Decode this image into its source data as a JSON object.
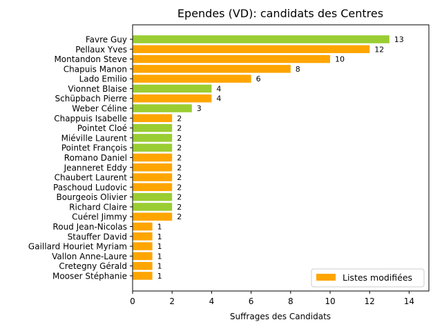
{
  "chart_data": {
    "type": "bar",
    "orientation": "horizontal",
    "title": "Ependes (VD): candidats des Centres",
    "xlabel": "Suffrages des Candidats",
    "ylabel": "",
    "xlim": [
      0,
      15
    ],
    "xticks": [
      "0",
      "2",
      "4",
      "6",
      "8",
      "10",
      "12",
      "14"
    ],
    "grid": false,
    "legend": {
      "position": "lower-right",
      "label": "Listes modifiées",
      "color": "#ffa500"
    },
    "colors": {
      "orange": "#ffa500",
      "green": "#9acd32"
    },
    "categories": [
      "Favre Guy",
      "Pellaux Yves",
      "Montandon Steve",
      "Chapuis Manon",
      "Lado Emilio",
      "Vionnet Blaise",
      "Schüpbach Pierre",
      "Weber Céline",
      "Chappuis Isabelle",
      "Pointet Cloé",
      "Miéville Laurent",
      "Pointet François",
      "Romano Daniel",
      "Jeanneret Eddy",
      "Chaubert Laurent",
      "Paschoud Ludovic",
      "Bourgeois Olivier",
      "Richard Claire",
      "Cuérel Jimmy",
      "Roud Jean-Nicolas",
      "Stauffer David",
      "Gaillard Houriet Myriam",
      "Vallon Anne-Laure",
      "Cretegny Gérald",
      "Mooser Stéphanie"
    ],
    "values": [
      13,
      12,
      10,
      8,
      6,
      4,
      4,
      3,
      2,
      2,
      2,
      2,
      2,
      2,
      2,
      2,
      2,
      2,
      2,
      1,
      1,
      1,
      1,
      1,
      1
    ],
    "bar_colors": [
      "green",
      "orange",
      "orange",
      "orange",
      "orange",
      "green",
      "orange",
      "green",
      "orange",
      "green",
      "green",
      "green",
      "orange",
      "orange",
      "orange",
      "orange",
      "green",
      "green",
      "orange",
      "orange",
      "orange",
      "orange",
      "orange",
      "orange",
      "orange"
    ]
  }
}
